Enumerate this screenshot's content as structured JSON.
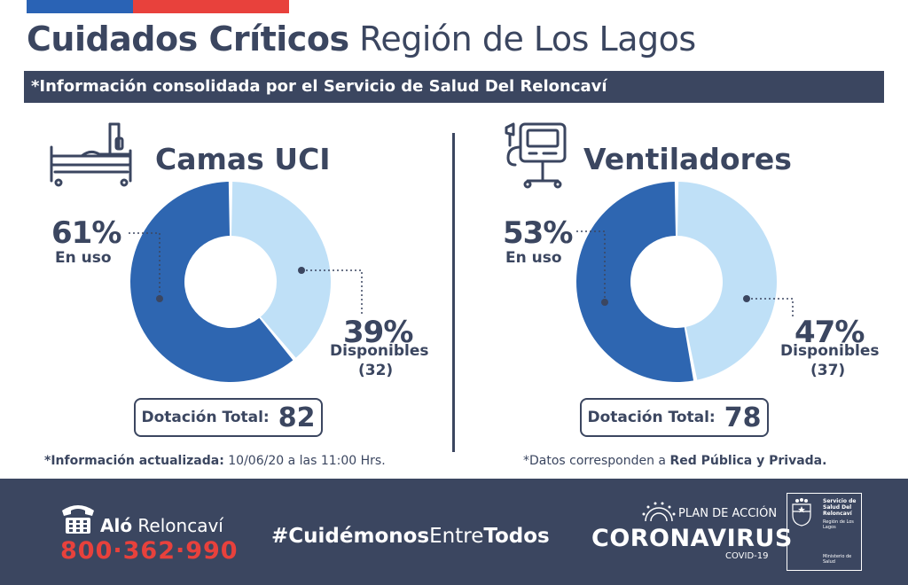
{
  "header": {
    "title_bold": "Cuidados Críticos",
    "title_light": "Región de Los Lagos",
    "subtitle": "*Información consolidada por el Servicio de Salud Del Reloncaví"
  },
  "camas": {
    "title": "Camas UCI",
    "icon": "hospital-bed-icon",
    "in_use_pct": "61%",
    "in_use_label": "En uso",
    "avail_pct": "39%",
    "avail_label": "Disponibles",
    "avail_count": "(32)",
    "total_label": "Dotación Total:",
    "total_value": "82"
  },
  "ventiladores": {
    "title": "Ventiladores",
    "icon": "ventilator-icon",
    "in_use_pct": "53%",
    "in_use_label": "En uso",
    "avail_pct": "47%",
    "avail_label": "Disponibles",
    "avail_count": "(37)",
    "total_label": "Dotación Total:",
    "total_value": "78"
  },
  "footnotes": {
    "left_bold": "*Información actualizada:",
    "left_norm": " 10/06/20 a las 11:00 Hrs.",
    "right_norm": "*Datos corresponden a ",
    "right_bold": "Red Pública y Privada."
  },
  "footer": {
    "alo_bold": "Aló",
    "alo_norm": " Reloncaví",
    "phone": "800·362·990",
    "hashtag_a": "#Cuidémonos",
    "hashtag_b": "Entre",
    "hashtag_c": "Todos",
    "plan": "PLAN DE ACCIÓN",
    "corona": "CORONAVIRUS",
    "covid": "COVID-19",
    "gov_line1": "Servicio de Salud Del Reloncaví",
    "gov_line2": "Región de Los Lagos",
    "gov_line3": "Ministerio de Salud"
  },
  "colors": {
    "dark_blue": "#2e66b1",
    "light_blue": "#bfe0f7",
    "navy": "#3b4660",
    "red": "#e8413c"
  },
  "chart_data": [
    {
      "type": "pie",
      "title": "Camas UCI",
      "categories": [
        "En uso",
        "Disponibles"
      ],
      "values": [
        61,
        39
      ],
      "counts": {
        "Disponibles": 32
      },
      "total": 82
    },
    {
      "type": "pie",
      "title": "Ventiladores",
      "categories": [
        "En uso",
        "Disponibles"
      ],
      "values": [
        53,
        47
      ],
      "counts": {
        "Disponibles": 37
      },
      "total": 78
    }
  ]
}
